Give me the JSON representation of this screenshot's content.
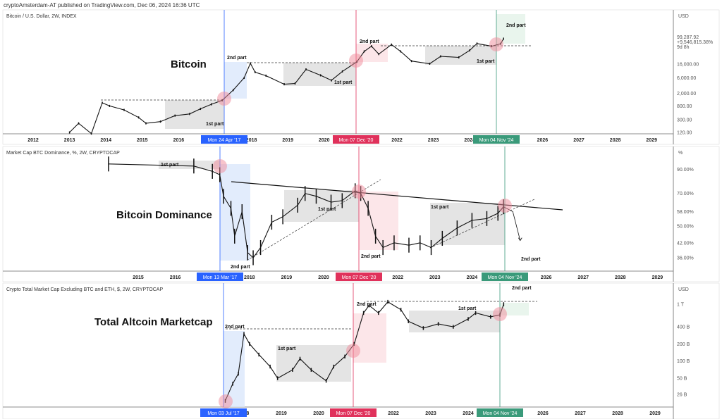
{
  "header": "cryptoAmsterdam-AT published on TradingView.com, Dec 06, 2024 16:36 UTC",
  "colors": {
    "blue": "#2962ff",
    "red": "#e0315b",
    "green": "#3a9a7a",
    "price": "#111111"
  },
  "chart_data": [
    {
      "type": "line",
      "symbol": "Bitcoin / U.S. Dollar, 2W, INDEX",
      "title": "Bitcoin",
      "currency": "USD",
      "scale": "log",
      "y_ticks": [
        "16,000.00",
        "6,000.00",
        "2,000.00",
        "800.00",
        "300.00",
        "120.00"
      ],
      "y_tick_values": [
        16000,
        6000,
        2000,
        800,
        300,
        120
      ],
      "last_price": "99,287.92",
      "last_change": "+9,546,815.38%",
      "countdown": "9d 8h",
      "x_ticks": [
        "2012",
        "2013",
        "2014",
        "2015",
        "2016",
        "2018",
        "2019",
        "2020",
        "2022",
        "2023",
        "2024",
        "2026",
        "2027",
        "2028",
        "2029"
      ],
      "markers": [
        {
          "label": "Mon 24 Apr '17",
          "year": 2017.31,
          "color": "blue"
        },
        {
          "label": "Mon 07 Dec '20",
          "year": 2020.93,
          "color": "red"
        },
        {
          "label": "Mon 04 Nov '24",
          "year": 2024.84,
          "color": "green"
        }
      ],
      "annotations": [
        "1st part",
        "2nd part",
        "1st part",
        "2nd part",
        "1st part",
        "2nd part"
      ],
      "points": [
        [
          2013.0,
          120
        ],
        [
          2013.25,
          230
        ],
        [
          2013.6,
          110
        ],
        [
          2013.9,
          1000
        ],
        [
          2014.1,
          800
        ],
        [
          2014.5,
          600
        ],
        [
          2014.9,
          350
        ],
        [
          2015.1,
          230
        ],
        [
          2015.5,
          260
        ],
        [
          2015.9,
          400
        ],
        [
          2016.3,
          450
        ],
        [
          2016.6,
          650
        ],
        [
          2016.9,
          900
        ],
        [
          2017.2,
          1200
        ],
        [
          2017.5,
          2500
        ],
        [
          2017.8,
          6000
        ],
        [
          2017.97,
          17000
        ],
        [
          2018.1,
          9000
        ],
        [
          2018.4,
          7000
        ],
        [
          2018.9,
          3800
        ],
        [
          2019.2,
          4000
        ],
        [
          2019.5,
          11000
        ],
        [
          2019.9,
          7200
        ],
        [
          2020.2,
          5000
        ],
        [
          2020.5,
          9500
        ],
        [
          2020.9,
          19000
        ],
        [
          2021.1,
          40000
        ],
        [
          2021.3,
          58000
        ],
        [
          2021.5,
          33000
        ],
        [
          2021.85,
          65000
        ],
        [
          2022.1,
          40000
        ],
        [
          2022.4,
          20000
        ],
        [
          2022.9,
          16500
        ],
        [
          2023.2,
          28000
        ],
        [
          2023.7,
          26000
        ],
        [
          2024.0,
          43000
        ],
        [
          2024.2,
          70000
        ],
        [
          2024.6,
          58000
        ],
        [
          2024.85,
          69000
        ],
        [
          2024.93,
          99287.92
        ]
      ]
    },
    {
      "type": "line",
      "symbol": "Market Cap BTC Dominance, %, 2W, CRYPTOCAP",
      "title": "Bitcoin Dominance",
      "currency": "%",
      "scale": "log",
      "y_ticks": [
        "90.00%",
        "70.00%",
        "58.00%",
        "50.00%",
        "42.00%",
        "36.00%"
      ],
      "y_tick_values": [
        90,
        70,
        58,
        50,
        42,
        36
      ],
      "x_ticks": [
        "2015",
        "2016",
        "2018",
        "2019",
        "2020",
        "2022",
        "2023",
        "2024",
        "2026",
        "2027",
        "2028",
        "2029"
      ],
      "markers": [
        {
          "label": "Mon 13 Mar '17",
          "year": 2017.2,
          "color": "blue"
        },
        {
          "label": "Mon 07 Dec '20",
          "year": 2020.93,
          "color": "red"
        },
        {
          "label": "Mon 04 Nov '24",
          "year": 2024.84,
          "color": "green"
        }
      ],
      "annotations": [
        "1st part",
        "2nd part",
        "1st part",
        "2nd part",
        "1st part",
        "2nd part"
      ],
      "points": [
        [
          2014.2,
          95
        ],
        [
          2016.5,
          93
        ],
        [
          2017.0,
          88
        ],
        [
          2017.2,
          85
        ],
        [
          2017.3,
          68
        ],
        [
          2017.5,
          60
        ],
        [
          2017.6,
          45
        ],
        [
          2017.8,
          58
        ],
        [
          2017.95,
          38
        ],
        [
          2018.1,
          36
        ],
        [
          2018.3,
          40
        ],
        [
          2018.6,
          52
        ],
        [
          2018.9,
          55
        ],
        [
          2019.3,
          62
        ],
        [
          2019.5,
          70
        ],
        [
          2019.8,
          68
        ],
        [
          2020.2,
          64
        ],
        [
          2020.5,
          65
        ],
        [
          2020.85,
          72
        ],
        [
          2021.0,
          70
        ],
        [
          2021.2,
          60
        ],
        [
          2021.4,
          45
        ],
        [
          2021.6,
          40
        ],
        [
          2021.9,
          42
        ],
        [
          2022.3,
          41
        ],
        [
          2022.6,
          42
        ],
        [
          2022.9,
          40
        ],
        [
          2023.2,
          44
        ],
        [
          2023.6,
          49
        ],
        [
          2024.0,
          53
        ],
        [
          2024.4,
          54
        ],
        [
          2024.7,
          57
        ],
        [
          2024.85,
          61
        ]
      ],
      "projection": [
        [
          2024.85,
          61
        ],
        [
          2025.1,
          58
        ],
        [
          2025.3,
          43
        ]
      ]
    },
    {
      "type": "line",
      "symbol": "Crypto Total Market Cap Excluding BTC and ETH, $, 2W, CRYPTOCAP",
      "title": "Total Altcoin Marketcap",
      "currency": "USD",
      "scale": "log",
      "y_ticks": [
        "1 T",
        "400 B",
        "200 B",
        "100 B",
        "50 B",
        "26 B"
      ],
      "y_tick_values": [
        1000,
        400,
        200,
        100,
        50,
        26
      ],
      "x_ticks": [
        "8",
        "2019",
        "2020",
        "2022",
        "2023",
        "2024",
        "2026",
        "2027",
        "2028",
        "2029"
      ],
      "markers": [
        {
          "label": "Mon 03 Jul '17",
          "year": 2017.5,
          "color": "blue"
        },
        {
          "label": "Mon 07 Dec '20",
          "year": 2020.93,
          "color": "red"
        },
        {
          "label": "Mon 04 Nov '24",
          "year": 2024.84,
          "color": "green"
        }
      ],
      "annotations": [
        "2nd part",
        "1st part",
        "2nd part",
        "1st part",
        "2nd part"
      ],
      "points_unit": "billion USD",
      "points": [
        [
          2017.5,
          20
        ],
        [
          2017.7,
          40
        ],
        [
          2017.85,
          60
        ],
        [
          2018.0,
          300
        ],
        [
          2018.15,
          200
        ],
        [
          2018.4,
          130
        ],
        [
          2018.7,
          80
        ],
        [
          2018.9,
          50
        ],
        [
          2019.3,
          70
        ],
        [
          2019.5,
          110
        ],
        [
          2019.8,
          70
        ],
        [
          2020.2,
          45
        ],
        [
          2020.4,
          80
        ],
        [
          2020.7,
          120
        ],
        [
          2020.95,
          200
        ],
        [
          2021.2,
          700
        ],
        [
          2021.35,
          950
        ],
        [
          2021.6,
          700
        ],
        [
          2021.85,
          1100
        ],
        [
          2022.2,
          800
        ],
        [
          2022.4,
          500
        ],
        [
          2022.8,
          380
        ],
        [
          2023.2,
          450
        ],
        [
          2023.6,
          400
        ],
        [
          2024.0,
          550
        ],
        [
          2024.2,
          700
        ],
        [
          2024.6,
          600
        ],
        [
          2024.85,
          650
        ],
        [
          2024.95,
          1000
        ]
      ]
    }
  ]
}
